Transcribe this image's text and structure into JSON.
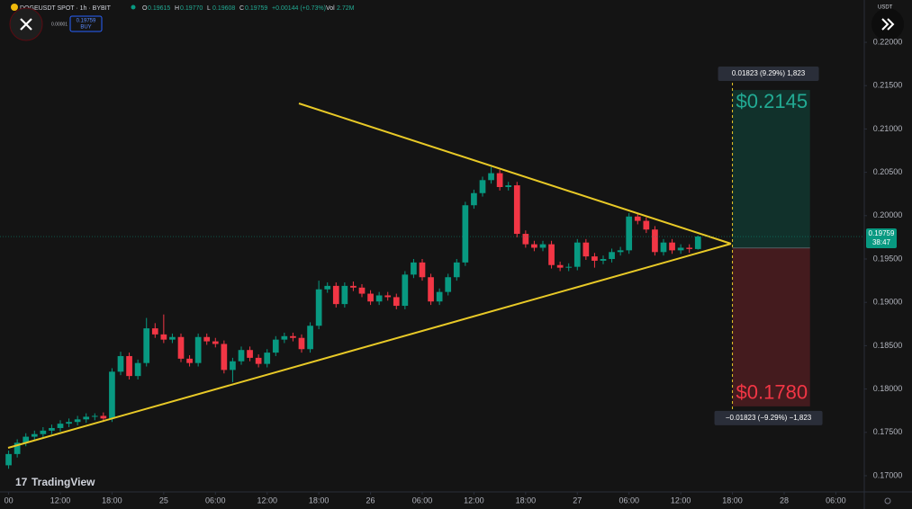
{
  "chart_data": {
    "type": "candlestick",
    "symbol": "DOGEUSDT SPOT · 1h · BYBIT",
    "header": [
      {
        "label": "O",
        "value": "0.19615"
      },
      {
        "label": "H",
        "value": "0.19770"
      },
      {
        "label": "L",
        "value": "0.19608"
      },
      {
        "label": "C",
        "value": "0.19759"
      }
    ],
    "change": "+0.00144 (+0.73%)",
    "volume_label": "Vol",
    "volume": "2.72M",
    "buy_price": "0.19759",
    "buy_label": "BUY",
    "spread": "0.00001",
    "currency": "USDT",
    "brand": "TradingView",
    "last_price": {
      "value": 0.19759,
      "label": "0.19759"
    },
    "countdown": "38:47",
    "up_color": "#089981",
    "down_color": "#f23645",
    "categories": [
      null,
      null,
      null,
      null,
      null,
      null,
      null,
      null,
      null,
      null,
      null,
      null,
      null,
      null,
      null,
      null,
      null,
      null,
      null,
      null,
      null,
      null,
      null,
      null,
      null,
      null,
      null,
      null,
      null,
      null,
      null,
      null,
      null,
      null,
      null,
      null,
      null,
      null,
      null,
      null,
      null,
      null,
      null,
      null,
      null,
      null,
      null,
      null,
      null,
      null,
      null,
      null,
      null,
      null,
      null,
      null,
      null,
      null,
      null,
      null,
      null,
      null,
      null,
      null,
      null,
      null,
      null,
      null,
      null,
      null,
      null,
      null,
      null,
      null,
      null,
      null,
      null,
      null,
      null,
      null,
      null
    ],
    "ohlc": [
      [
        0.1712,
        0.1729,
        0.1708,
        0.1725
      ],
      [
        0.1725,
        0.1742,
        0.1721,
        0.1738
      ],
      [
        0.1738,
        0.1749,
        0.1734,
        0.1745
      ],
      [
        0.1745,
        0.1752,
        0.1741,
        0.1748
      ],
      [
        0.1748,
        0.1756,
        0.1744,
        0.1752
      ],
      [
        0.1752,
        0.1759,
        0.1748,
        0.1755
      ],
      [
        0.1755,
        0.1764,
        0.1751,
        0.176
      ],
      [
        0.176,
        0.1766,
        0.1756,
        0.1762
      ],
      [
        0.1762,
        0.1769,
        0.1758,
        0.1765
      ],
      [
        0.1765,
        0.1772,
        0.1761,
        0.1768
      ],
      [
        0.1768,
        0.1772,
        0.1764,
        0.1769
      ],
      [
        0.1769,
        0.1773,
        0.1762,
        0.1766
      ],
      [
        0.1766,
        0.1824,
        0.1762,
        0.182
      ],
      [
        0.182,
        0.1843,
        0.1816,
        0.1838
      ],
      [
        0.1838,
        0.1842,
        0.1811,
        0.1815
      ],
      [
        0.1815,
        0.1834,
        0.1811,
        0.183
      ],
      [
        0.183,
        0.1882,
        0.1826,
        0.187
      ],
      [
        0.187,
        0.1876,
        0.1859,
        0.1863
      ],
      [
        0.1863,
        0.1886,
        0.1853,
        0.1857
      ],
      [
        0.1857,
        0.1864,
        0.1853,
        0.186
      ],
      [
        0.186,
        0.1864,
        0.1831,
        0.1835
      ],
      [
        0.1835,
        0.1839,
        0.1826,
        0.183
      ],
      [
        0.183,
        0.1864,
        0.1826,
        0.186
      ],
      [
        0.186,
        0.1864,
        0.1851,
        0.1855
      ],
      [
        0.1855,
        0.1859,
        0.1848,
        0.1852
      ],
      [
        0.1852,
        0.1856,
        0.1818,
        0.1822
      ],
      [
        0.1822,
        0.1836,
        0.1808,
        0.1832
      ],
      [
        0.1832,
        0.1849,
        0.1828,
        0.1845
      ],
      [
        0.1845,
        0.1849,
        0.1832,
        0.1836
      ],
      [
        0.1836,
        0.184,
        0.1825,
        0.1829
      ],
      [
        0.1829,
        0.1846,
        0.1825,
        0.1842
      ],
      [
        0.1842,
        0.1861,
        0.1838,
        0.1857
      ],
      [
        0.1857,
        0.1865,
        0.1853,
        0.1861
      ],
      [
        0.1861,
        0.1865,
        0.1855,
        0.1859
      ],
      [
        0.1859,
        0.1863,
        0.1842,
        0.1846
      ],
      [
        0.1846,
        0.1877,
        0.1842,
        0.1873
      ],
      [
        0.1873,
        0.1925,
        0.1869,
        0.1915
      ],
      [
        0.1915,
        0.1923,
        0.1911,
        0.1919
      ],
      [
        0.1919,
        0.1923,
        0.1894,
        0.1898
      ],
      [
        0.1898,
        0.1923,
        0.1894,
        0.1919
      ],
      [
        0.1919,
        0.1924,
        0.1913,
        0.1917
      ],
      [
        0.1917,
        0.1921,
        0.1906,
        0.191
      ],
      [
        0.191,
        0.1914,
        0.1897,
        0.1901
      ],
      [
        0.1901,
        0.1912,
        0.1897,
        0.1908
      ],
      [
        0.1908,
        0.1912,
        0.1902,
        0.1906
      ],
      [
        0.1906,
        0.191,
        0.1892,
        0.1896
      ],
      [
        0.1896,
        0.1936,
        0.1892,
        0.1932
      ],
      [
        0.1932,
        0.195,
        0.1928,
        0.1946
      ],
      [
        0.1946,
        0.195,
        0.1925,
        0.1929
      ],
      [
        0.1929,
        0.1933,
        0.1897,
        0.1901
      ],
      [
        0.1901,
        0.1916,
        0.1897,
        0.1912
      ],
      [
        0.1912,
        0.1933,
        0.1908,
        0.1929
      ],
      [
        0.1929,
        0.195,
        0.1925,
        0.1946
      ],
      [
        0.1946,
        0.2016,
        0.1942,
        0.2012
      ],
      [
        0.2012,
        0.203,
        0.2008,
        0.2026
      ],
      [
        0.2026,
        0.2045,
        0.2022,
        0.2041
      ],
      [
        0.2041,
        0.2056,
        0.2037,
        0.2049
      ],
      [
        0.2049,
        0.2053,
        0.2029,
        0.2033
      ],
      [
        0.2033,
        0.2039,
        0.2029,
        0.2035
      ],
      [
        0.2035,
        0.2039,
        0.1975,
        0.1979
      ],
      [
        0.1979,
        0.1983,
        0.1963,
        0.1967
      ],
      [
        0.1967,
        0.1971,
        0.1959,
        0.1963
      ],
      [
        0.1963,
        0.1971,
        0.1959,
        0.1967
      ],
      [
        0.1967,
        0.1971,
        0.1939,
        0.1943
      ],
      [
        0.1943,
        0.1947,
        0.1936,
        0.194
      ],
      [
        0.194,
        0.1945,
        0.1936,
        0.1941
      ],
      [
        0.1941,
        0.1973,
        0.1937,
        0.1969
      ],
      [
        0.1969,
        0.1973,
        0.1949,
        0.1953
      ],
      [
        0.1953,
        0.1957,
        0.194,
        0.1948
      ],
      [
        0.1948,
        0.1954,
        0.1944,
        0.195
      ],
      [
        0.195,
        0.1962,
        0.1946,
        0.1958
      ],
      [
        0.1958,
        0.1964,
        0.1954,
        0.196
      ],
      [
        0.196,
        0.2003,
        0.1956,
        0.1999
      ],
      [
        0.1999,
        0.2003,
        0.199,
        0.1994
      ],
      [
        0.1994,
        0.1998,
        0.198,
        0.1984
      ],
      [
        0.1984,
        0.1988,
        0.1954,
        0.1958
      ],
      [
        0.1958,
        0.1973,
        0.1954,
        0.1969
      ],
      [
        0.1969,
        0.1973,
        0.1956,
        0.196
      ],
      [
        0.196,
        0.1967,
        0.1956,
        0.1963
      ],
      [
        0.1963,
        0.1967,
        0.1957,
        0.19615
      ],
      [
        0.19615,
        0.1977,
        0.19608,
        0.19759
      ]
    ],
    "xlim": [
      -1,
      99.3
    ],
    "xticks": [
      {
        "value": 0,
        "label": "00"
      },
      {
        "value": 6,
        "label": "12:00"
      },
      {
        "value": 12,
        "label": "18:00"
      },
      {
        "value": 18,
        "label": "25"
      },
      {
        "value": 24,
        "label": "06:00"
      },
      {
        "value": 30,
        "label": "12:00"
      },
      {
        "value": 36,
        "label": "18:00"
      },
      {
        "value": 42,
        "label": "26"
      },
      {
        "value": 48,
        "label": "06:00"
      },
      {
        "value": 54,
        "label": "12:00"
      },
      {
        "value": 60,
        "label": "18:00"
      },
      {
        "value": 66,
        "label": "27"
      },
      {
        "value": 72,
        "label": "06:00"
      },
      {
        "value": 78,
        "label": "12:00"
      },
      {
        "value": 84,
        "label": "18:00"
      },
      {
        "value": 90,
        "label": "28"
      },
      {
        "value": 96,
        "label": "06:00"
      }
    ],
    "ylim": [
      0.16813,
      0.22488
    ],
    "yticks": [
      {
        "value": 0.22,
        "label": "0.22000"
      },
      {
        "value": 0.215,
        "label": "0.21500"
      },
      {
        "value": 0.21,
        "label": "0.21000"
      },
      {
        "value": 0.205,
        "label": "0.20500"
      },
      {
        "value": 0.2,
        "label": "0.20000"
      },
      {
        "value": 0.195,
        "label": "0.19500"
      },
      {
        "value": 0.19,
        "label": "0.19000"
      },
      {
        "value": 0.185,
        "label": "0.18500"
      },
      {
        "value": 0.18,
        "label": "0.18000"
      },
      {
        "value": 0.175,
        "label": "0.17500"
      },
      {
        "value": 0.17,
        "label": "0.17000"
      }
    ],
    "position": {
      "entry": 0.19627,
      "target": 0.2145,
      "target_label": "$0.2145",
      "target_info": "0.01823 (9.29%) 1,823",
      "stop": 0.178,
      "stop_label": "$0.1780",
      "stop_info": "−0.01823 (−9.29%) −1,823"
    }
  }
}
